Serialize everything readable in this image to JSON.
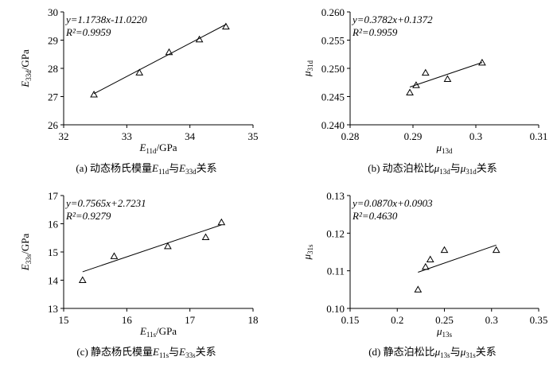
{
  "chart_data": [
    {
      "type": "scatter",
      "x": [
        32.48,
        33.2,
        33.67,
        34.15,
        34.57
      ],
      "y": [
        27.07,
        27.85,
        28.57,
        29.02,
        29.48
      ],
      "xlim": [
        32,
        35
      ],
      "xticks": [
        32,
        33,
        34,
        35
      ],
      "ylim": [
        26,
        30
      ],
      "yticks": [
        26,
        27,
        28,
        29,
        30
      ],
      "fit": {
        "slope": 1.1738,
        "intercept": -11.022
      },
      "equation": "y=1.1738x-11.0220",
      "r2": "R²=0.9959",
      "xlabel": {
        "symbol": "E",
        "subscript": "11d",
        "unit": "/GPa"
      },
      "ylabel": {
        "symbol": "E",
        "subscript": "33d",
        "unit": "/GPa"
      },
      "caption": [
        {
          "text": "(a) 动态杨氏模量"
        },
        {
          "text": "E",
          "italic": true
        },
        {
          "text": "11d",
          "sub": true
        },
        {
          "text": "与"
        },
        {
          "text": "E",
          "italic": true
        },
        {
          "text": "33d",
          "sub": true
        },
        {
          "text": "关系"
        }
      ]
    },
    {
      "type": "scatter",
      "x": [
        0.2895,
        0.2905,
        0.292,
        0.2955,
        0.301
      ],
      "y": [
        0.2457,
        0.247,
        0.2492,
        0.2481,
        0.251
      ],
      "xlim": [
        0.28,
        0.31
      ],
      "xticks": [
        0.28,
        0.29,
        0.3,
        0.31
      ],
      "ylim": [
        0.24,
        0.26
      ],
      "yticks": [
        {
          "value": 0.24,
          "label": "0.240"
        },
        {
          "value": 0.245,
          "label": "0.245"
        },
        {
          "value": 0.25,
          "label": "0.250"
        },
        {
          "value": 0.255,
          "label": "0.255"
        },
        {
          "value": 0.26,
          "label": "0.260"
        }
      ],
      "fit": {
        "slope": 0.3782,
        "intercept": 0.1372
      },
      "equation": "y=0.3782x+0.1372",
      "r2": "R²=0.9959",
      "xlabel": {
        "symbol": "μ",
        "subscript": "13d"
      },
      "ylabel": {
        "symbol": "μ",
        "subscript": "31d"
      },
      "caption": [
        {
          "text": "(b) 动态泊松比"
        },
        {
          "text": "μ",
          "italic": true
        },
        {
          "text": "13d",
          "sub": true
        },
        {
          "text": "与"
        },
        {
          "text": "μ",
          "italic": true
        },
        {
          "text": "31d",
          "sub": true
        },
        {
          "text": "关系"
        }
      ]
    },
    {
      "type": "scatter",
      "x": [
        15.3,
        15.8,
        16.65,
        17.25,
        17.5
      ],
      "y": [
        14.0,
        14.85,
        15.2,
        15.52,
        16.05
      ],
      "xlim": [
        15,
        18
      ],
      "xticks": [
        15,
        16,
        17,
        18
      ],
      "ylim": [
        13,
        17
      ],
      "yticks": [
        13,
        14,
        15,
        16,
        17
      ],
      "fit": {
        "slope": 0.7565,
        "intercept": 2.7231
      },
      "equation": "y=0.7565x+2.7231",
      "r2": "R²=0.9279",
      "xlabel": {
        "symbol": "E",
        "subscript": "11s",
        "unit": "/GPa"
      },
      "ylabel": {
        "symbol": "E",
        "subscript": "33s",
        "unit": "/GPa"
      },
      "caption": [
        {
          "text": "(c) 静态杨氏模量"
        },
        {
          "text": "E",
          "italic": true
        },
        {
          "text": "11s",
          "sub": true
        },
        {
          "text": "与"
        },
        {
          "text": "E",
          "italic": true
        },
        {
          "text": "33s",
          "sub": true
        },
        {
          "text": "关系"
        }
      ]
    },
    {
      "type": "scatter",
      "x": [
        0.222,
        0.23,
        0.235,
        0.25,
        0.305
      ],
      "y": [
        0.105,
        0.111,
        0.113,
        0.1155,
        0.1155
      ],
      "xlim": [
        0.15,
        0.35
      ],
      "xticks": [
        0.15,
        0.2,
        0.25,
        0.3,
        0.35
      ],
      "ylim": [
        0.1,
        0.13
      ],
      "yticks": [
        {
          "value": 0.1,
          "label": "0.10"
        },
        {
          "value": 0.11,
          "label": "0.11"
        },
        {
          "value": 0.12,
          "label": "0.12"
        },
        {
          "value": 0.13,
          "label": "0.13"
        }
      ],
      "fit": {
        "slope": 0.087,
        "intercept": 0.0903
      },
      "equation": "y=0.0870x+0.0903",
      "r2": "R²=0.4630",
      "xlabel": {
        "symbol": "μ",
        "subscript": "13s"
      },
      "ylabel": {
        "symbol": "μ",
        "subscript": "31s"
      },
      "caption": [
        {
          "text": "(d) 静态泊松比"
        },
        {
          "text": "μ",
          "italic": true
        },
        {
          "text": "13s",
          "sub": true
        },
        {
          "text": "与"
        },
        {
          "text": "μ",
          "italic": true
        },
        {
          "text": "31s",
          "sub": true
        },
        {
          "text": "关系"
        }
      ]
    }
  ]
}
